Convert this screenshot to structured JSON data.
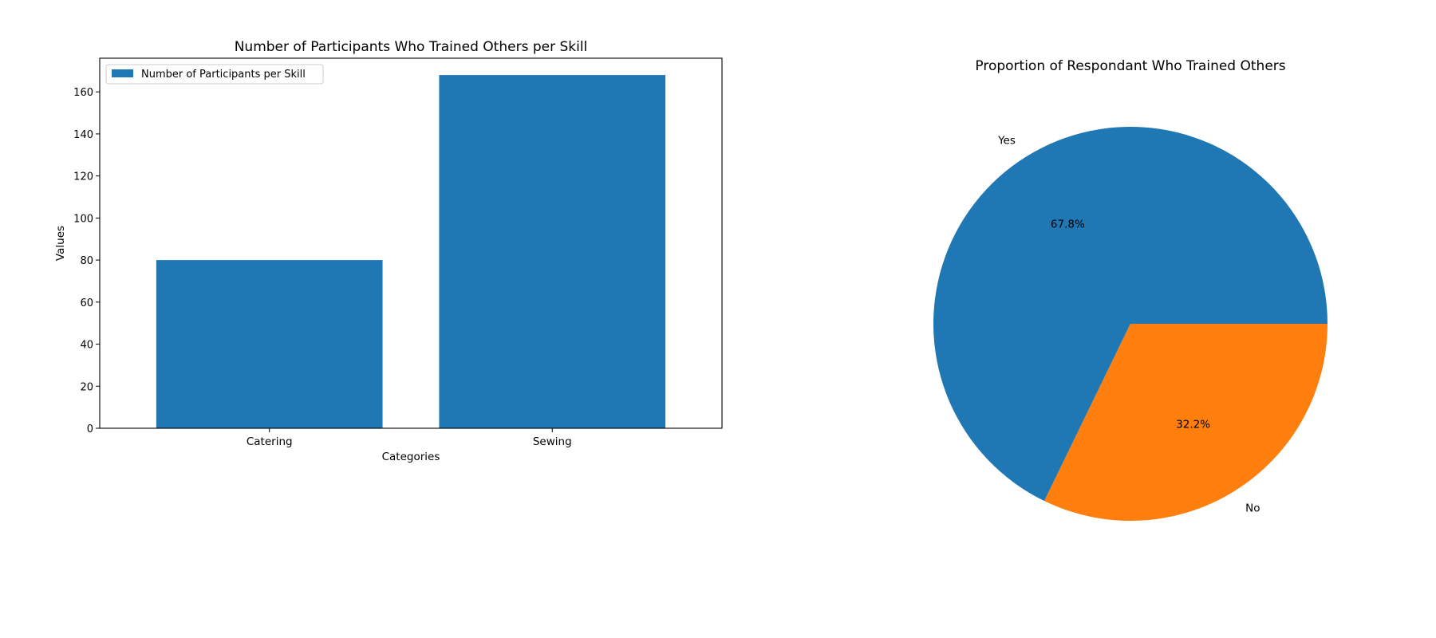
{
  "chart_data": [
    {
      "type": "bar",
      "title": "Number of Participants Who Trained Others per Skill",
      "xlabel": "Categories",
      "ylabel": "Values",
      "categories": [
        "Catering",
        "Sewing"
      ],
      "series": [
        {
          "name": "Number of Participants per Skill",
          "values": [
            80,
            168
          ],
          "color": "#1f77b4"
        }
      ],
      "ylim": [
        0,
        176
      ],
      "yticks": [
        0,
        20,
        40,
        60,
        80,
        100,
        120,
        140,
        160
      ],
      "legend": "top-left",
      "grid": false
    },
    {
      "type": "pie",
      "title": "Proportion of Respondant Who Trained Others",
      "slices": [
        {
          "label": "Yes",
          "value": 67.8,
          "pct_label": "67.8%",
          "color": "#1f77b4"
        },
        {
          "label": "No",
          "value": 32.2,
          "pct_label": "32.2%",
          "color": "#ff7f0e"
        }
      ]
    }
  ]
}
